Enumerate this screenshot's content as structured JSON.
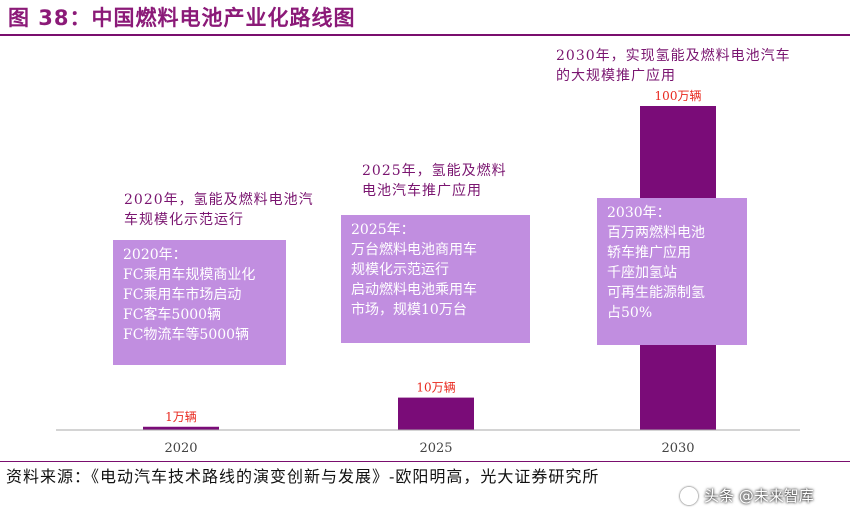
{
  "header": {
    "title": "图 38：中国燃料电池产业化路线图"
  },
  "callouts": {
    "c2020": "2020年，氢能及燃料电池汽车规模化示范运行",
    "c2025_l1": "2025年，氢能及燃料",
    "c2025_l2": "电池汽车推广应用",
    "c2030_l1": "2030年，实现氢能及燃料电池汽车",
    "c2030_l2": "的大规模推广应用"
  },
  "boxes": {
    "b2020": [
      "2020年：",
      "FC乘用车规模商业化",
      "FC乘用车市场启动",
      "FC客车5000辆",
      "FC物流车等5000辆"
    ],
    "b2025": [
      "2025年：",
      "万台燃料电池商用车",
      "规模化示范运行",
      "启动燃料电池乘用车",
      "市场，规模10万台"
    ],
    "b2030": [
      "2030年：",
      "百万两燃料电池",
      "轿车推广应用",
      "千座加氢站",
      "可再生能源制氢",
      "占50%"
    ]
  },
  "chart_data": {
    "type": "bar",
    "title": "",
    "xlabel": "",
    "ylabel": "",
    "categories": [
      "2020",
      "2025",
      "2030"
    ],
    "values": [
      1,
      10,
      100
    ],
    "data_labels": [
      "1万辆",
      "10万辆",
      "100万辆"
    ],
    "unit": "万辆",
    "ylim": [
      0,
      100
    ],
    "grid": false,
    "legend": "none",
    "bar_color": "#7A0C78",
    "label_color": "#E8281E"
  },
  "footer": {
    "source": "资料来源：《电动汽车技术路线的演变创新与发展》-欧阳明高，光大证券研究所",
    "watermark": "头条 @未来智库"
  }
}
